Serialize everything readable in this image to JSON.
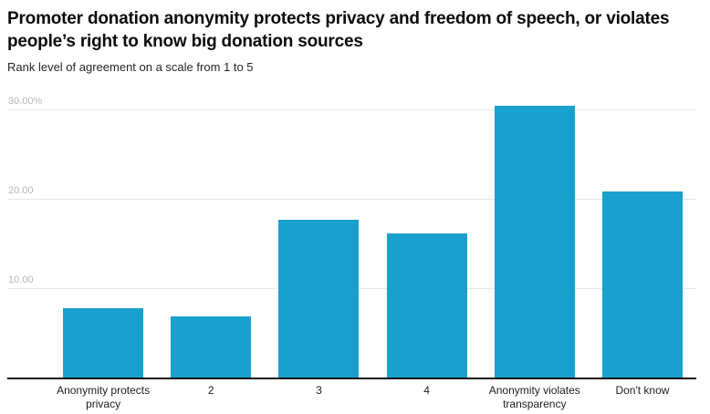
{
  "chart_data": {
    "type": "bar",
    "title": "Promoter donation anonymity protects privacy and freedom of speech, or violates people’s right to know big donation sources",
    "subtitle": "Rank level of agreement on a scale from 1 to 5",
    "categories": [
      "Anonymity protects privacy",
      "2",
      "3",
      "4",
      "Anonymity violates transparency",
      "Don't know"
    ],
    "values": [
      7.8,
      6.9,
      17.7,
      16.2,
      30.5,
      20.9
    ],
    "unit": "%",
    "xlabel": "",
    "ylabel": "",
    "ylim": [
      0,
      33.7
    ],
    "y_ticks": [
      {
        "value": 10,
        "label": "10.00"
      },
      {
        "value": 20,
        "label": "20.00"
      },
      {
        "value": 30,
        "label": "30.00%"
      }
    ],
    "grid": true,
    "legend": null
  },
  "colors": {
    "bar": "#19a0cd",
    "axis_line": "#141414",
    "gridline": "#e7e7e7",
    "y_tick_text": "#b6b6b6",
    "x_tick_text": "#1f1f1f",
    "title_text": "#0b0b0b",
    "subtitle_text": "#262626"
  }
}
